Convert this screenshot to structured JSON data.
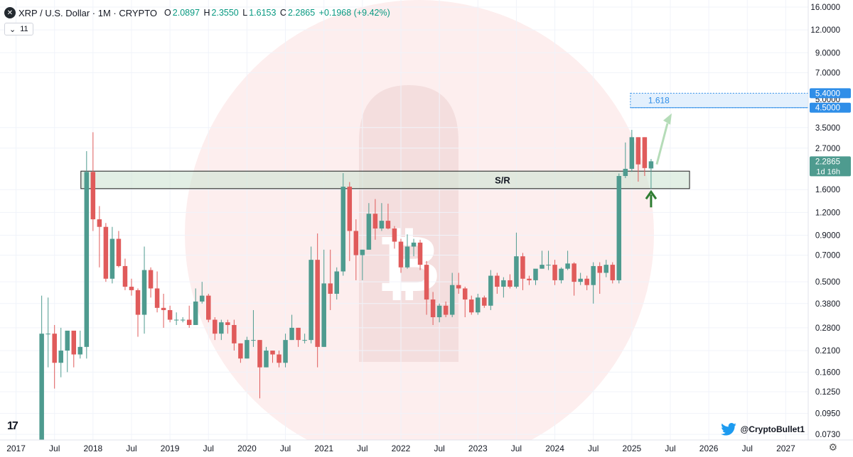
{
  "header": {
    "symbol_icon": "x-logo-icon",
    "symbol": "XRP / U.S. Dollar · 1M · CRYPTO",
    "o_label": "O",
    "o": "2.0897",
    "h_label": "H",
    "h": "2.3550",
    "l_label": "L",
    "l": "1.6153",
    "c_label": "C",
    "c": "2.2865",
    "change": "+0.1968 (+9.42%)",
    "indicator_value": "11"
  },
  "branding": {
    "logo_text": "17",
    "twitter_handle": "@CryptoBullet1"
  },
  "colors": {
    "up": "#4e9b8f",
    "down": "#e05b5b",
    "zone": "#cfe5d3",
    "target": "#2f8ee8",
    "arrow": "#2e7d32"
  },
  "chart_data": {
    "type": "candlestick",
    "title": "XRP / U.S. Dollar · 1M · CRYPTO",
    "scale": "log",
    "ylim": [
      0.068,
      17.5
    ],
    "xlim": [
      "2016-11",
      "2027-05"
    ],
    "y_ticks": [
      16.0,
      12.0,
      9.0,
      7.0,
      5.4,
      5.0,
      4.5,
      3.5,
      2.7,
      2.2865,
      1.6,
      1.2,
      0.9,
      0.7,
      0.5,
      0.38,
      0.28,
      0.21,
      0.16,
      0.125,
      0.095,
      0.073
    ],
    "y_tick_labels": [
      "16.0000",
      "12.0000",
      "9.0000",
      "7.0000",
      "5.4000",
      "5.0000",
      "4.5000",
      "3.5000",
      "2.7000",
      "2.2865",
      "1.6000",
      "1.2000",
      "0.9000",
      "0.7000",
      "0.5000",
      "0.3800",
      "0.2800",
      "0.2100",
      "0.1600",
      "0.1250",
      "0.0950",
      "0.0730"
    ],
    "x_ticks": [
      {
        "date": "2017-01",
        "label": "2017"
      },
      {
        "date": "2017-07",
        "label": "Jul"
      },
      {
        "date": "2018-01",
        "label": "2018"
      },
      {
        "date": "2018-07",
        "label": "Jul"
      },
      {
        "date": "2019-01",
        "label": "2019"
      },
      {
        "date": "2019-07",
        "label": "Jul"
      },
      {
        "date": "2020-01",
        "label": "2020"
      },
      {
        "date": "2020-07",
        "label": "Jul"
      },
      {
        "date": "2021-01",
        "label": "2021"
      },
      {
        "date": "2021-07",
        "label": "Jul"
      },
      {
        "date": "2022-01",
        "label": "2022"
      },
      {
        "date": "2022-07",
        "label": "Jul"
      },
      {
        "date": "2023-01",
        "label": "2023"
      },
      {
        "date": "2023-07",
        "label": "Jul"
      },
      {
        "date": "2024-01",
        "label": "2024"
      },
      {
        "date": "2024-07",
        "label": "Jul"
      },
      {
        "date": "2025-01",
        "label": "2025"
      },
      {
        "date": "2025-07",
        "label": "Jul"
      },
      {
        "date": "2026-01",
        "label": "2026"
      },
      {
        "date": "2026-07",
        "label": "Jul"
      },
      {
        "date": "2027-01",
        "label": "2027"
      }
    ],
    "candles": [
      {
        "t": "2017-05",
        "o": 0.066,
        "h": 0.42,
        "l": 0.066,
        "c": 0.26
      },
      {
        "t": "2017-06",
        "o": 0.26,
        "h": 0.41,
        "l": 0.17,
        "c": 0.26
      },
      {
        "t": "2017-07",
        "o": 0.26,
        "h": 0.29,
        "l": 0.13,
        "c": 0.18
      },
      {
        "t": "2017-08",
        "o": 0.18,
        "h": 0.28,
        "l": 0.15,
        "c": 0.21
      },
      {
        "t": "2017-09",
        "o": 0.21,
        "h": 0.27,
        "l": 0.16,
        "c": 0.27
      },
      {
        "t": "2017-10",
        "o": 0.27,
        "h": 0.27,
        "l": 0.17,
        "c": 0.2
      },
      {
        "t": "2017-11",
        "o": 0.2,
        "h": 0.27,
        "l": 0.19,
        "c": 0.22
      },
      {
        "t": "2017-12",
        "o": 0.22,
        "h": 2.6,
        "l": 0.19,
        "c": 2.0
      },
      {
        "t": "2018-01",
        "o": 2.0,
        "h": 3.3,
        "l": 0.95,
        "c": 1.1
      },
      {
        "t": "2018-02",
        "o": 1.1,
        "h": 1.3,
        "l": 0.6,
        "c": 1.0
      },
      {
        "t": "2018-03",
        "o": 1.0,
        "h": 1.05,
        "l": 0.5,
        "c": 0.52
      },
      {
        "t": "2018-04",
        "o": 0.52,
        "h": 1.0,
        "l": 0.49,
        "c": 0.86
      },
      {
        "t": "2018-05",
        "o": 0.86,
        "h": 0.95,
        "l": 0.6,
        "c": 0.61
      },
      {
        "t": "2018-06",
        "o": 0.61,
        "h": 0.67,
        "l": 0.45,
        "c": 0.47
      },
      {
        "t": "2018-07",
        "o": 0.47,
        "h": 0.52,
        "l": 0.42,
        "c": 0.45
      },
      {
        "t": "2018-08",
        "o": 0.45,
        "h": 0.46,
        "l": 0.25,
        "c": 0.33
      },
      {
        "t": "2018-09",
        "o": 0.33,
        "h": 0.78,
        "l": 0.26,
        "c": 0.58
      },
      {
        "t": "2018-10",
        "o": 0.58,
        "h": 0.6,
        "l": 0.41,
        "c": 0.46
      },
      {
        "t": "2018-11",
        "o": 0.46,
        "h": 0.57,
        "l": 0.34,
        "c": 0.36
      },
      {
        "t": "2018-12",
        "o": 0.36,
        "h": 0.43,
        "l": 0.28,
        "c": 0.35
      },
      {
        "t": "2019-01",
        "o": 0.35,
        "h": 0.37,
        "l": 0.3,
        "c": 0.31
      },
      {
        "t": "2019-02",
        "o": 0.31,
        "h": 0.34,
        "l": 0.29,
        "c": 0.31
      },
      {
        "t": "2019-03",
        "o": 0.31,
        "h": 0.32,
        "l": 0.3,
        "c": 0.31
      },
      {
        "t": "2019-04",
        "o": 0.31,
        "h": 0.37,
        "l": 0.28,
        "c": 0.29
      },
      {
        "t": "2019-05",
        "o": 0.29,
        "h": 0.46,
        "l": 0.29,
        "c": 0.39
      },
      {
        "t": "2019-06",
        "o": 0.39,
        "h": 0.5,
        "l": 0.38,
        "c": 0.42
      },
      {
        "t": "2019-07",
        "o": 0.42,
        "h": 0.43,
        "l": 0.3,
        "c": 0.31
      },
      {
        "t": "2019-08",
        "o": 0.31,
        "h": 0.32,
        "l": 0.24,
        "c": 0.26
      },
      {
        "t": "2019-09",
        "o": 0.26,
        "h": 0.31,
        "l": 0.24,
        "c": 0.3
      },
      {
        "t": "2019-10",
        "o": 0.3,
        "h": 0.31,
        "l": 0.26,
        "c": 0.29
      },
      {
        "t": "2019-11",
        "o": 0.29,
        "h": 0.31,
        "l": 0.21,
        "c": 0.23
      },
      {
        "t": "2019-12",
        "o": 0.23,
        "h": 0.23,
        "l": 0.18,
        "c": 0.19
      },
      {
        "t": "2020-01",
        "o": 0.19,
        "h": 0.25,
        "l": 0.19,
        "c": 0.24
      },
      {
        "t": "2020-02",
        "o": 0.24,
        "h": 0.35,
        "l": 0.22,
        "c": 0.24
      },
      {
        "t": "2020-03",
        "o": 0.24,
        "h": 0.24,
        "l": 0.115,
        "c": 0.17
      },
      {
        "t": "2020-04",
        "o": 0.17,
        "h": 0.22,
        "l": 0.17,
        "c": 0.21
      },
      {
        "t": "2020-05",
        "o": 0.21,
        "h": 0.21,
        "l": 0.18,
        "c": 0.2
      },
      {
        "t": "2020-06",
        "o": 0.2,
        "h": 0.21,
        "l": 0.17,
        "c": 0.18
      },
      {
        "t": "2020-07",
        "o": 0.18,
        "h": 0.26,
        "l": 0.17,
        "c": 0.24
      },
      {
        "t": "2020-08",
        "o": 0.24,
        "h": 0.33,
        "l": 0.24,
        "c": 0.28
      },
      {
        "t": "2020-09",
        "o": 0.28,
        "h": 0.28,
        "l": 0.22,
        "c": 0.24
      },
      {
        "t": "2020-10",
        "o": 0.24,
        "h": 0.26,
        "l": 0.23,
        "c": 0.24
      },
      {
        "t": "2020-11",
        "o": 0.24,
        "h": 0.78,
        "l": 0.23,
        "c": 0.66
      },
      {
        "t": "2020-12",
        "o": 0.66,
        "h": 0.92,
        "l": 0.17,
        "c": 0.22
      },
      {
        "t": "2021-01",
        "o": 0.22,
        "h": 0.75,
        "l": 0.22,
        "c": 0.49
      },
      {
        "t": "2021-02",
        "o": 0.49,
        "h": 0.75,
        "l": 0.35,
        "c": 0.43
      },
      {
        "t": "2021-03",
        "o": 0.43,
        "h": 0.6,
        "l": 0.4,
        "c": 0.57
      },
      {
        "t": "2021-04",
        "o": 0.57,
        "h": 1.97,
        "l": 0.54,
        "c": 1.66
      },
      {
        "t": "2021-05",
        "o": 1.66,
        "h": 1.76,
        "l": 0.65,
        "c": 0.95
      },
      {
        "t": "2021-06",
        "o": 0.95,
        "h": 1.1,
        "l": 0.51,
        "c": 0.7
      },
      {
        "t": "2021-07",
        "o": 0.7,
        "h": 0.75,
        "l": 0.51,
        "c": 0.75
      },
      {
        "t": "2021-08",
        "o": 0.75,
        "h": 1.35,
        "l": 0.75,
        "c": 1.18
      },
      {
        "t": "2021-09",
        "o": 1.18,
        "h": 1.42,
        "l": 0.85,
        "c": 0.98
      },
      {
        "t": "2021-10",
        "o": 0.98,
        "h": 1.35,
        "l": 0.95,
        "c": 1.08
      },
      {
        "t": "2021-11",
        "o": 1.08,
        "h": 1.34,
        "l": 0.97,
        "c": 0.98
      },
      {
        "t": "2021-12",
        "o": 0.98,
        "h": 1.01,
        "l": 0.76,
        "c": 0.83
      },
      {
        "t": "2022-01",
        "o": 0.83,
        "h": 0.86,
        "l": 0.56,
        "c": 0.6
      },
      {
        "t": "2022-02",
        "o": 0.6,
        "h": 0.91,
        "l": 0.59,
        "c": 0.78
      },
      {
        "t": "2022-03",
        "o": 0.78,
        "h": 0.86,
        "l": 0.69,
        "c": 0.82
      },
      {
        "t": "2022-04",
        "o": 0.82,
        "h": 0.85,
        "l": 0.58,
        "c": 0.62
      },
      {
        "t": "2022-05",
        "o": 0.62,
        "h": 0.65,
        "l": 0.33,
        "c": 0.4
      },
      {
        "t": "2022-06",
        "o": 0.4,
        "h": 0.44,
        "l": 0.29,
        "c": 0.32
      },
      {
        "t": "2022-07",
        "o": 0.32,
        "h": 0.38,
        "l": 0.3,
        "c": 0.37
      },
      {
        "t": "2022-08",
        "o": 0.37,
        "h": 0.39,
        "l": 0.32,
        "c": 0.33
      },
      {
        "t": "2022-09",
        "o": 0.33,
        "h": 0.56,
        "l": 0.32,
        "c": 0.48
      },
      {
        "t": "2022-10",
        "o": 0.48,
        "h": 0.56,
        "l": 0.43,
        "c": 0.46
      },
      {
        "t": "2022-11",
        "o": 0.46,
        "h": 0.47,
        "l": 0.32,
        "c": 0.4
      },
      {
        "t": "2022-12",
        "o": 0.4,
        "h": 0.42,
        "l": 0.33,
        "c": 0.34
      },
      {
        "t": "2023-01",
        "o": 0.34,
        "h": 0.43,
        "l": 0.33,
        "c": 0.41
      },
      {
        "t": "2023-02",
        "o": 0.41,
        "h": 0.42,
        "l": 0.36,
        "c": 0.37
      },
      {
        "t": "2023-03",
        "o": 0.37,
        "h": 0.58,
        "l": 0.35,
        "c": 0.54
      },
      {
        "t": "2023-04",
        "o": 0.54,
        "h": 0.56,
        "l": 0.43,
        "c": 0.47
      },
      {
        "t": "2023-05",
        "o": 0.47,
        "h": 0.53,
        "l": 0.41,
        "c": 0.51
      },
      {
        "t": "2023-06",
        "o": 0.51,
        "h": 0.55,
        "l": 0.46,
        "c": 0.47
      },
      {
        "t": "2023-07",
        "o": 0.47,
        "h": 0.93,
        "l": 0.46,
        "c": 0.69
      },
      {
        "t": "2023-08",
        "o": 0.69,
        "h": 0.72,
        "l": 0.45,
        "c": 0.52
      },
      {
        "t": "2023-09",
        "o": 0.52,
        "h": 0.54,
        "l": 0.48,
        "c": 0.51
      },
      {
        "t": "2023-10",
        "o": 0.51,
        "h": 0.57,
        "l": 0.48,
        "c": 0.59
      },
      {
        "t": "2023-11",
        "o": 0.59,
        "h": 0.74,
        "l": 0.59,
        "c": 0.62
      },
      {
        "t": "2023-12",
        "o": 0.62,
        "h": 0.74,
        "l": 0.58,
        "c": 0.62
      },
      {
        "t": "2024-01",
        "o": 0.62,
        "h": 0.66,
        "l": 0.48,
        "c": 0.51
      },
      {
        "t": "2024-02",
        "o": 0.51,
        "h": 0.6,
        "l": 0.49,
        "c": 0.59
      },
      {
        "t": "2024-03",
        "o": 0.59,
        "h": 0.74,
        "l": 0.58,
        "c": 0.63
      },
      {
        "t": "2024-04",
        "o": 0.63,
        "h": 0.64,
        "l": 0.42,
        "c": 0.5
      },
      {
        "t": "2024-05",
        "o": 0.5,
        "h": 0.56,
        "l": 0.48,
        "c": 0.52
      },
      {
        "t": "2024-06",
        "o": 0.52,
        "h": 0.54,
        "l": 0.45,
        "c": 0.48
      },
      {
        "t": "2024-07",
        "o": 0.48,
        "h": 0.64,
        "l": 0.38,
        "c": 0.61
      },
      {
        "t": "2024-08",
        "o": 0.61,
        "h": 0.64,
        "l": 0.43,
        "c": 0.56
      },
      {
        "t": "2024-09",
        "o": 0.56,
        "h": 0.66,
        "l": 0.53,
        "c": 0.62
      },
      {
        "t": "2024-10",
        "o": 0.62,
        "h": 0.64,
        "l": 0.49,
        "c": 0.51
      },
      {
        "t": "2024-11",
        "o": 0.51,
        "h": 1.96,
        "l": 0.49,
        "c": 1.9
      },
      {
        "t": "2024-12",
        "o": 1.9,
        "h": 2.9,
        "l": 1.85,
        "c": 2.08
      },
      {
        "t": "2025-01",
        "o": 2.08,
        "h": 3.4,
        "l": 2.0,
        "c": 3.1
      },
      {
        "t": "2025-02",
        "o": 3.1,
        "h": 3.1,
        "l": 1.77,
        "c": 2.2
      },
      {
        "t": "2025-03",
        "o": 3.1,
        "h": 3.1,
        "l": 1.9,
        "c": 2.1
      },
      {
        "t": "2025-04",
        "o": 2.0897,
        "h": 2.355,
        "l": 1.6153,
        "c": 2.2865
      }
    ],
    "sr_zone": {
      "label": "S/R",
      "low": 1.62,
      "high": 2.02,
      "from": "2017-12",
      "to": "2025-10"
    },
    "target_zone": {
      "label": "1.618",
      "low": 4.5,
      "high": 5.4,
      "from": "2025-01",
      "to": "2027-05"
    },
    "price_tags": [
      {
        "value": 5.4,
        "label": "5.4000"
      },
      {
        "value": 4.5,
        "label": "4.5000"
      },
      {
        "value": 2.2865,
        "label": "2.2865",
        "sublabel": "1d 16h"
      }
    ],
    "projection_arrow": {
      "from_date": "2025-04",
      "from_value": 2.2,
      "to_date": "2025-07",
      "to_value": 3.9
    },
    "bounce_arrow": {
      "date": "2025-04",
      "value": 1.45
    }
  }
}
